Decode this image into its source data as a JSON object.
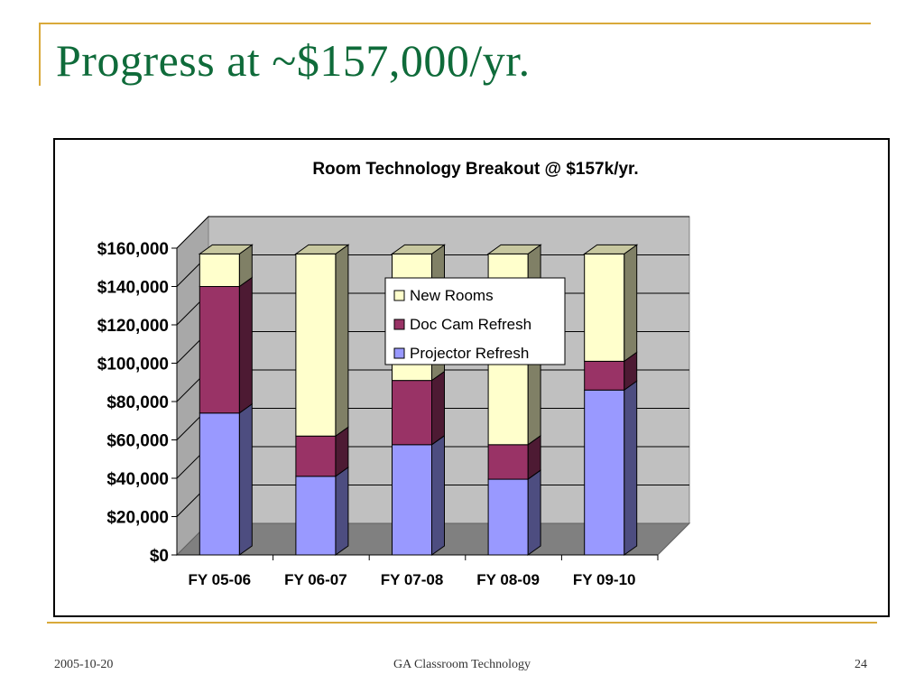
{
  "slide": {
    "title": "Progress at ~$157,000/yr.",
    "footer_date": "2005-10-20",
    "footer_center": "GA Classroom Technology",
    "page_number": "24"
  },
  "chart_data": {
    "type": "bar",
    "stacked": true,
    "three_d": true,
    "title": "Room Technology Breakout @ $157k/yr.",
    "xlabel": "",
    "ylabel": "",
    "categories": [
      "FY 05-06",
      "FY 06-07",
      "FY 07-08",
      "FY 08-09",
      "FY 09-10"
    ],
    "ylim": [
      0,
      160000
    ],
    "yticks": [
      0,
      20000,
      40000,
      60000,
      80000,
      100000,
      120000,
      140000,
      160000
    ],
    "ytick_labels": [
      "$0",
      "$20,000",
      "$40,000",
      "$60,000",
      "$80,000",
      "$100,000",
      "$120,000",
      "$140,000",
      "$160,000"
    ],
    "grid": true,
    "legend_position": "upper-center",
    "series": [
      {
        "name": "Projector Refresh",
        "color": "#9999ff",
        "values": [
          74000,
          41000,
          57500,
          39500,
          86000
        ]
      },
      {
        "name": "Doc Cam Refresh",
        "color": "#993366",
        "values": [
          66000,
          21000,
          33500,
          18000,
          15000
        ]
      },
      {
        "name": "New Rooms",
        "color": "#ffffcc",
        "values": [
          17000,
          95000,
          66000,
          99500,
          56000
        ]
      }
    ]
  }
}
